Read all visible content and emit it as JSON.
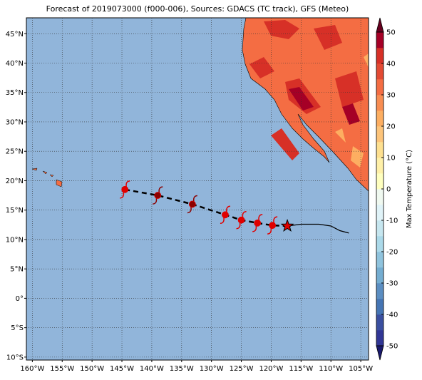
{
  "title": "Forecast of 2019073000 (f000-006), Sources: GDACS (TC track), GFS (Meteo)",
  "lonlim": [
    -161,
    -103.7
  ],
  "latlim": [
    -10.5,
    47.7
  ],
  "lon_ticks": [
    {
      "value": -160,
      "label": "160°W"
    },
    {
      "value": -155,
      "label": "155°W"
    },
    {
      "value": -150,
      "label": "150°W"
    },
    {
      "value": -145,
      "label": "145°W"
    },
    {
      "value": -140,
      "label": "140°W"
    },
    {
      "value": -135,
      "label": "135°W"
    },
    {
      "value": -130,
      "label": "130°W"
    },
    {
      "value": -125,
      "label": "125°W"
    },
    {
      "value": -120,
      "label": "120°W"
    },
    {
      "value": -115,
      "label": "115°W"
    },
    {
      "value": -110,
      "label": "110°W"
    },
    {
      "value": -105,
      "label": "105°W"
    }
  ],
  "lat_ticks": [
    {
      "value": 45,
      "label": "45°N"
    },
    {
      "value": 40,
      "label": "40°N"
    },
    {
      "value": 35,
      "label": "35°N"
    },
    {
      "value": 30,
      "label": "30°N"
    },
    {
      "value": 25,
      "label": "25°N"
    },
    {
      "value": 20,
      "label": "20°N"
    },
    {
      "value": 15,
      "label": "15°N"
    },
    {
      "value": 10,
      "label": "10°N"
    },
    {
      "value": 5,
      "label": "5°N"
    },
    {
      "value": 0,
      "label": "0°"
    },
    {
      "value": -5,
      "label": "5°S"
    },
    {
      "value": -10,
      "label": "10°S"
    }
  ],
  "colorbar": {
    "label": "Max Temperature (°C)",
    "range": [
      -50,
      50
    ],
    "ticks": [
      50,
      40,
      30,
      20,
      10,
      0,
      -10,
      -20,
      -30,
      -40,
      -50
    ],
    "colors": [
      "#313695",
      "#3a4fa0",
      "#4575b4",
      "#5b8ec2",
      "#74add1",
      "#8fc3dd",
      "#abd9e9",
      "#c6e6ef",
      "#e0f3f8",
      "#f0f9f0",
      "#ffffbf",
      "#fff0a8",
      "#fee090",
      "#fdc47a",
      "#fdae61",
      "#f88d52",
      "#f46d43",
      "#e34a33",
      "#d73027",
      "#a50026"
    ]
  },
  "forecast_track": {
    "lon": [
      -144.5,
      -139,
      -133.2,
      -127.7,
      -125,
      -122.3,
      -119.8
    ],
    "lat": [
      18.5,
      17.5,
      16,
      14.2,
      13.3,
      12.8,
      12.4
    ],
    "marker_colors": [
      "#e00000",
      "#8b0000",
      "#8b0000",
      "#e00000",
      "#e00000",
      "#e00000",
      "#e00000"
    ]
  },
  "current_position": {
    "lon": -117.3,
    "lat": 12.3
  },
  "past_track": {
    "lon": [
      -117.3,
      -115,
      -112,
      -110,
      -108.5,
      -107
    ],
    "lat": [
      12.3,
      12.6,
      12.6,
      12.3,
      11.5,
      11.1
    ]
  }
}
